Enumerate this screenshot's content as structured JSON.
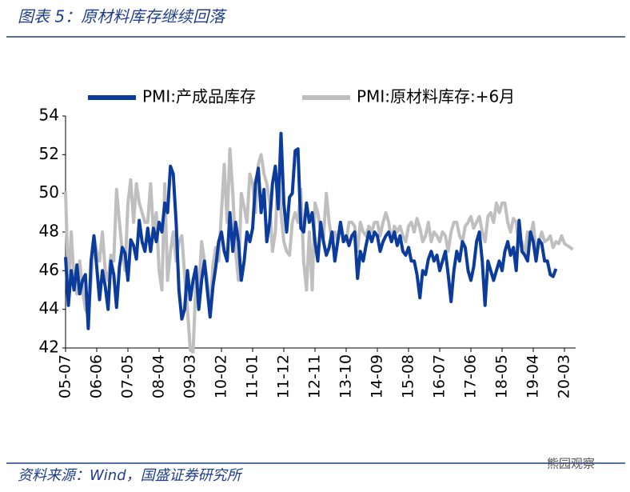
{
  "header": {
    "title": "图表 5：原材料库存继续回落"
  },
  "footer": {
    "source": "资料来源：Wind，国盛证券研究所",
    "watermark": "熊园观察"
  },
  "chart_data": {
    "type": "line",
    "categories": [
      "05-07",
      null,
      null,
      null,
      null,
      null,
      null,
      null,
      null,
      null,
      null,
      "06-06",
      null,
      null,
      null,
      null,
      null,
      null,
      null,
      null,
      null,
      null,
      "07-05",
      null,
      null,
      null,
      null,
      null,
      null,
      null,
      null,
      null,
      null,
      "08-04",
      null,
      null,
      null,
      null,
      null,
      null,
      null,
      null,
      null,
      null,
      "09-03",
      null,
      null,
      null,
      null,
      null,
      null,
      null,
      null,
      null,
      null,
      "10-02",
      null,
      null,
      null,
      null,
      null,
      null,
      null,
      null,
      null,
      null,
      "11-01",
      null,
      null,
      null,
      null,
      null,
      null,
      null,
      null,
      null,
      null,
      "11-12",
      null,
      null,
      null,
      null,
      null,
      null,
      null,
      null,
      null,
      null,
      "12-11",
      null,
      null,
      null,
      null,
      null,
      null,
      null,
      null,
      null,
      null,
      "13-10",
      null,
      null,
      null,
      null,
      null,
      null,
      null,
      null,
      null,
      null,
      "14-09",
      null,
      null,
      null,
      null,
      null,
      null,
      null,
      null,
      null,
      null,
      "15-08",
      null,
      null,
      null,
      null,
      null,
      null,
      null,
      null,
      null,
      null,
      "16-07",
      null,
      null,
      null,
      null,
      null,
      null,
      null,
      null,
      null,
      null,
      "17-06",
      null,
      null,
      null,
      null,
      null,
      null,
      null,
      null,
      null,
      null,
      "18-05",
      null,
      null,
      null,
      null,
      null,
      null,
      null,
      null,
      null,
      null,
      "19-04",
      null,
      null,
      null,
      null,
      null,
      null,
      null,
      null,
      null,
      null,
      "20-03",
      null,
      null,
      null
    ],
    "series": [
      {
        "name": "PMI:产成品库存",
        "color": "#0b3c9c",
        "values": [
          46.7,
          44.2,
          46.0,
          45.0,
          46.3,
          44.8,
          45.5,
          45.8,
          43.0,
          46.5,
          47.8,
          46.2,
          44.5,
          46.0,
          45.2,
          44.0,
          46.5,
          45.8,
          44.1,
          46.2,
          47.2,
          46.9,
          45.5,
          47.6,
          47.3,
          46.6,
          48.6,
          47.5,
          47.0,
          48.2,
          47.0,
          48.2,
          47.5,
          48.5,
          48.0,
          49.5,
          49.0,
          51.4,
          51.0,
          48.5,
          45.0,
          43.5,
          44.0,
          46.0,
          44.5,
          45.5,
          46.2,
          44.0,
          45.5,
          46.5,
          45.0,
          43.6,
          45.2,
          46.2,
          47.5,
          48.0,
          47.0,
          46.5,
          49.0,
          47.0,
          48.5,
          47.5,
          45.5,
          46.5,
          48.0,
          47.5,
          48.2,
          50.5,
          51.3,
          49.0,
          50.2,
          47.5,
          48.5,
          50.5,
          51.4,
          49.2,
          53.1,
          49.5,
          48.0,
          49.8,
          50.0,
          52.2,
          52.3,
          48.2,
          48.0,
          49.5,
          48.5,
          49.0,
          47.5,
          46.5,
          48.5,
          47.5,
          46.8,
          47.2,
          48.0,
          46.5,
          47.5,
          48.5,
          47.5,
          47.8,
          47.3,
          47.8,
          48.0,
          45.6,
          47.0,
          46.5,
          47.3,
          48.0,
          47.5,
          48.0,
          47.8,
          47.0,
          47.5,
          47.8,
          48.0,
          47.5,
          48.0,
          47.3,
          47.8,
          47.0,
          46.8,
          47.2,
          46.5,
          46.5,
          45.8,
          44.6,
          46.0,
          45.8,
          46.6,
          47.0,
          46.5,
          46.8,
          46.0,
          46.5,
          47.0,
          45.8,
          44.4,
          46.0,
          47.0,
          46.5,
          47.5,
          47.2,
          46.0,
          45.5,
          46.2,
          47.5,
          48.0,
          46.5,
          44.2,
          46.5,
          46.0,
          45.5,
          46.0,
          46.5,
          46.0,
          47.0,
          47.5,
          46.8,
          47.2,
          46.0,
          48.6,
          47.0,
          46.8,
          46.5,
          48.0,
          47.5,
          46.5,
          47.6,
          47.4,
          46.5,
          46.5,
          45.8,
          45.7,
          46.1,
          null,
          null,
          null,
          null,
          null,
          null
        ]
      },
      {
        "name": "PMI:原材料库存:+6月",
        "color": "#bfbfbf",
        "values": [
          50.1,
          45.0,
          48.0,
          45.5,
          44.8,
          46.5,
          45.0,
          44.0,
          43.7,
          45.5,
          47.8,
          47.0,
          46.5,
          48.0,
          46.0,
          45.5,
          46.8,
          46.5,
          50.2,
          48.5,
          47.0,
          46.0,
          49.5,
          50.7,
          48.5,
          50.5,
          49.5,
          49.0,
          48.5,
          48.5,
          50.5,
          48.0,
          49.0,
          46.0,
          45.0,
          50.5,
          45.5,
          47.0,
          48.0,
          46.5,
          47.5,
          47.8,
          45.8,
          44.0,
          41.9,
          41.8,
          45.5,
          45.0,
          47.5,
          46.5,
          45.5,
          44.0,
          46.3,
          47.2,
          46.5,
          49.0,
          51.5,
          48.5,
          52.3,
          50.0,
          47.0,
          45.5,
          50.0,
          49.3,
          48.5,
          51.0,
          50.5,
          49.0,
          51.5,
          52.0,
          51.0,
          50.5,
          49.5,
          47.0,
          48.0,
          51.0,
          49.0,
          47.5,
          47.0,
          46.8,
          48.5,
          49.0,
          48.5,
          50.2,
          46.5,
          45.0,
          48.0,
          45.0,
          49.5,
          49.0,
          48.0,
          47.7,
          50.0,
          48.5,
          47.5,
          48.0,
          47.5,
          48.5,
          47.8,
          47.5,
          48.5,
          48.5,
          48.3,
          47.0,
          48.5,
          48.0,
          47.8,
          48.3,
          48.0,
          48.5,
          48.5,
          47.8,
          48.5,
          49.0,
          48.5,
          47.5,
          48.3,
          48.0,
          48.3,
          47.8,
          47.5,
          48.3,
          48.5,
          48.0,
          48.7,
          48.2,
          47.5,
          47.8,
          48.5,
          47.5,
          48.0,
          47.8,
          47.5,
          48.0,
          47.8,
          47.0,
          48.0,
          48.5,
          48.5,
          47.8,
          47.5,
          48.3,
          48.5,
          48.8,
          48.2,
          48.5,
          48.8,
          48.0,
          47.5,
          48.8,
          49.0,
          48.5,
          49.5,
          49.0,
          49.5,
          49.5,
          48.5,
          48.0,
          48.7,
          48.5,
          47.3,
          47.5,
          46.8,
          48.0,
          47.8,
          48.5,
          47.0,
          47.5,
          48.0,
          47.5,
          47.6,
          47.8,
          47.2,
          47.5,
          47.4,
          47.8,
          47.4,
          47.3,
          47.2,
          47.1
        ]
      }
    ],
    "ylim": [
      42,
      54
    ],
    "yticks": [
      42,
      44,
      46,
      48,
      50,
      52,
      54
    ],
    "legend": "top",
    "grid": false
  }
}
